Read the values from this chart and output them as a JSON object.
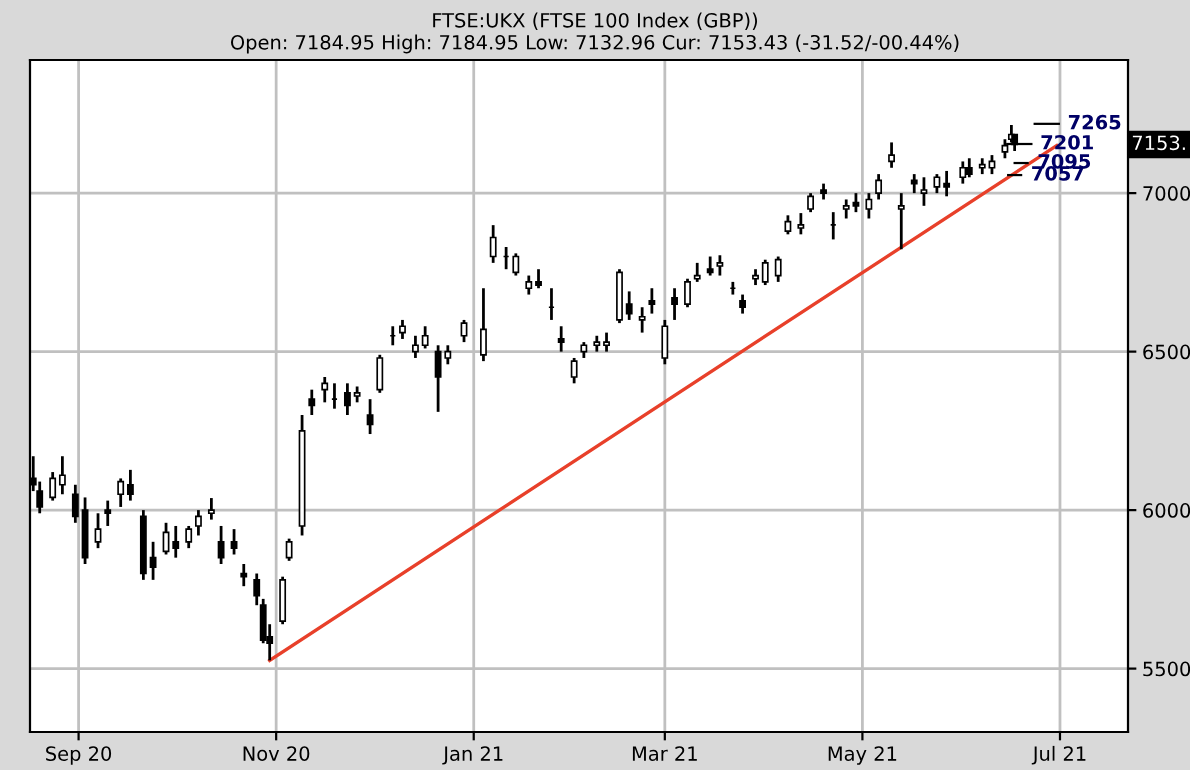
{
  "chart_data": {
    "type": "candlestick",
    "title": "FTSE:UKX (FTSE 100 Index (GBP))",
    "subtitle": "Open: 7184.95 High: 7184.95 Low: 7132.96 Cur: 7153.43 (-31.52/-00.44%)",
    "x": [
      "2020-08-18",
      "2020-08-20",
      "2020-08-24",
      "2020-08-27",
      "2020-08-31",
      "2020-09-03",
      "2020-09-07",
      "2020-09-10",
      "2020-09-14",
      "2020-09-17",
      "2020-09-21",
      "2020-09-24",
      "2020-09-28",
      "2020-10-01",
      "2020-10-05",
      "2020-10-08",
      "2020-10-12",
      "2020-10-15",
      "2020-10-19",
      "2020-10-22",
      "2020-10-26",
      "2020-10-28",
      "2020-10-30",
      "2020-11-03",
      "2020-11-05",
      "2020-11-09",
      "2020-11-12",
      "2020-11-16",
      "2020-11-19",
      "2020-11-23",
      "2020-11-26",
      "2020-11-30",
      "2020-12-03",
      "2020-12-07",
      "2020-12-10",
      "2020-12-14",
      "2020-12-17",
      "2020-12-21",
      "2020-12-24",
      "2020-12-29",
      "2021-01-04",
      "2021-01-07",
      "2021-01-11",
      "2021-01-14",
      "2021-01-18",
      "2021-01-21",
      "2021-01-25",
      "2021-01-28",
      "2021-02-01",
      "2021-02-04",
      "2021-02-08",
      "2021-02-11",
      "2021-02-15",
      "2021-02-18",
      "2021-02-22",
      "2021-02-25",
      "2021-03-01",
      "2021-03-04",
      "2021-03-08",
      "2021-03-11",
      "2021-03-15",
      "2021-03-18",
      "2021-03-22",
      "2021-03-25",
      "2021-03-29",
      "2021-04-01",
      "2021-04-05",
      "2021-04-08",
      "2021-04-12",
      "2021-04-15",
      "2021-04-19",
      "2021-04-22",
      "2021-04-26",
      "2021-04-29",
      "2021-05-03",
      "2021-05-06",
      "2021-05-10",
      "2021-05-13",
      "2021-05-17",
      "2021-05-20",
      "2021-05-24",
      "2021-05-27",
      "2021-06-01",
      "2021-06-03",
      "2021-06-07",
      "2021-06-10",
      "2021-06-14",
      "2021-06-16",
      "2021-06-17"
    ],
    "ohlc": [
      [
        6100,
        6170,
        6060,
        6080
      ],
      [
        6060,
        6090,
        5990,
        6010
      ],
      [
        6040,
        6120,
        6030,
        6100
      ],
      [
        6080,
        6170,
        6050,
        6110
      ],
      [
        6050,
        6080,
        5960,
        5980
      ],
      [
        6000,
        6040,
        5830,
        5850
      ],
      [
        5900,
        5990,
        5880,
        5940
      ],
      [
        6000,
        6030,
        5950,
        5990
      ],
      [
        6050,
        6100,
        6010,
        6090
      ],
      [
        6080,
        6127,
        6030,
        6050
      ],
      [
        5980,
        6000,
        5780,
        5800
      ],
      [
        5850,
        5900,
        5780,
        5820
      ],
      [
        5870,
        5960,
        5860,
        5930
      ],
      [
        5900,
        5950,
        5850,
        5880
      ],
      [
        5900,
        5950,
        5880,
        5940
      ],
      [
        5950,
        6000,
        5920,
        5980
      ],
      [
        5990,
        6038,
        5970,
        6000
      ],
      [
        5900,
        5950,
        5830,
        5850
      ],
      [
        5900,
        5940,
        5860,
        5880
      ],
      [
        5800,
        5830,
        5760,
        5790
      ],
      [
        5780,
        5800,
        5700,
        5730
      ],
      [
        5700,
        5720,
        5580,
        5590
      ],
      [
        5600,
        5640,
        5526,
        5580
      ],
      [
        5650,
        5790,
        5640,
        5780
      ],
      [
        5850,
        5910,
        5840,
        5900
      ],
      [
        5950,
        6300,
        5920,
        6250
      ],
      [
        6350,
        6380,
        6300,
        6330
      ],
      [
        6380,
        6420,
        6340,
        6400
      ],
      [
        6350,
        6400,
        6320,
        6350
      ],
      [
        6370,
        6400,
        6300,
        6330
      ],
      [
        6360,
        6390,
        6340,
        6370
      ],
      [
        6300,
        6350,
        6240,
        6270
      ],
      [
        6380,
        6490,
        6370,
        6480
      ],
      [
        6550,
        6580,
        6520,
        6550
      ],
      [
        6560,
        6600,
        6540,
        6580
      ],
      [
        6500,
        6550,
        6480,
        6520
      ],
      [
        6520,
        6580,
        6510,
        6550
      ],
      [
        6500,
        6520,
        6310,
        6420
      ],
      [
        6480,
        6520,
        6460,
        6500
      ],
      [
        6550,
        6600,
        6530,
        6590
      ],
      [
        6490,
        6700,
        6470,
        6570
      ],
      [
        6800,
        6899,
        6780,
        6860
      ],
      [
        6800,
        6830,
        6760,
        6800
      ],
      [
        6750,
        6810,
        6740,
        6800
      ],
      [
        6700,
        6740,
        6680,
        6720
      ],
      [
        6720,
        6760,
        6700,
        6710
      ],
      [
        6640,
        6700,
        6600,
        6640
      ],
      [
        6540,
        6580,
        6500,
        6530
      ],
      [
        6420,
        6480,
        6400,
        6470
      ],
      [
        6500,
        6530,
        6480,
        6520
      ],
      [
        6520,
        6550,
        6500,
        6530
      ],
      [
        6520,
        6560,
        6500,
        6530
      ],
      [
        6600,
        6760,
        6590,
        6750
      ],
      [
        6650,
        6690,
        6600,
        6620
      ],
      [
        6600,
        6640,
        6560,
        6610
      ],
      [
        6660,
        6700,
        6620,
        6650
      ],
      [
        6480,
        6600,
        6460,
        6580
      ],
      [
        6670,
        6700,
        6600,
        6650
      ],
      [
        6650,
        6730,
        6640,
        6720
      ],
      [
        6730,
        6780,
        6720,
        6740
      ],
      [
        6760,
        6800,
        6740,
        6750
      ],
      [
        6770,
        6804,
        6740,
        6780
      ],
      [
        6700,
        6720,
        6680,
        6700
      ],
      [
        6660,
        6680,
        6620,
        6640
      ],
      [
        6730,
        6760,
        6710,
        6740
      ],
      [
        6720,
        6790,
        6710,
        6780
      ],
      [
        6740,
        6800,
        6720,
        6790
      ],
      [
        6880,
        6930,
        6870,
        6910
      ],
      [
        6890,
        6937,
        6870,
        6900
      ],
      [
        6950,
        7000,
        6940,
        6990
      ],
      [
        7010,
        7030,
        6980,
        7000
      ],
      [
        6900,
        6940,
        6854,
        6900
      ],
      [
        6950,
        6980,
        6920,
        6960
      ],
      [
        6970,
        7000,
        6940,
        6960
      ],
      [
        6950,
        7000,
        6920,
        6980
      ],
      [
        7000,
        7060,
        6980,
        7040
      ],
      [
        7100,
        7160,
        7080,
        7120
      ],
      [
        6950,
        7000,
        6823,
        6960
      ],
      [
        7040,
        7060,
        7000,
        7030
      ],
      [
        7000,
        7050,
        6960,
        7010
      ],
      [
        7020,
        7060,
        7000,
        7050
      ],
      [
        7030,
        7070,
        6990,
        7020
      ],
      [
        7050,
        7100,
        7030,
        7080
      ],
      [
        7080,
        7110,
        7050,
        7060
      ],
      [
        7080,
        7110,
        7060,
        7090
      ],
      [
        7080,
        7120,
        7060,
        7100
      ],
      [
        7130,
        7170,
        7110,
        7150
      ],
      [
        7170,
        7215,
        7160,
        7185
      ],
      [
        7184.95,
        7184.95,
        7132.96,
        7153.43
      ]
    ],
    "color": "#000000",
    "series": [
      {
        "type": "line",
        "color": "#e8402a",
        "x": [
          "2020-10-30",
          "2021-06-30"
        ],
        "values": [
          5526,
          7150
        ]
      }
    ],
    "annotations": [
      "7265",
      "7201",
      {
        "text": "7095",
        "x": "2021-06-17",
        "y": 7095
      },
      {
        "text": "7057",
        "x": "2021-06-15",
        "y": 7057
      },
      {
        "text": "7153.",
        "y": 7153.4
      }
    ],
    "xlim": [
      "2020-08-17",
      "2021-07-22"
    ],
    "xticks": [
      {
        "value": "2020-09-01",
        "label": "Sep 20"
      },
      {
        "value": "2020-11-01",
        "label": "Nov 20"
      },
      {
        "value": "2021-01-01",
        "label": "Jan 21"
      },
      {
        "value": "2021-03-01",
        "label": "Mar 21"
      },
      {
        "value": "2021-05-01",
        "label": "May 21"
      },
      {
        "value": "2021-07-01",
        "label": "Jul 21"
      }
    ],
    "ylim": [
      5300,
      7420
    ],
    "yticks": [
      5500,
      6000,
      6500,
      7000
    ],
    "grid": true
  }
}
